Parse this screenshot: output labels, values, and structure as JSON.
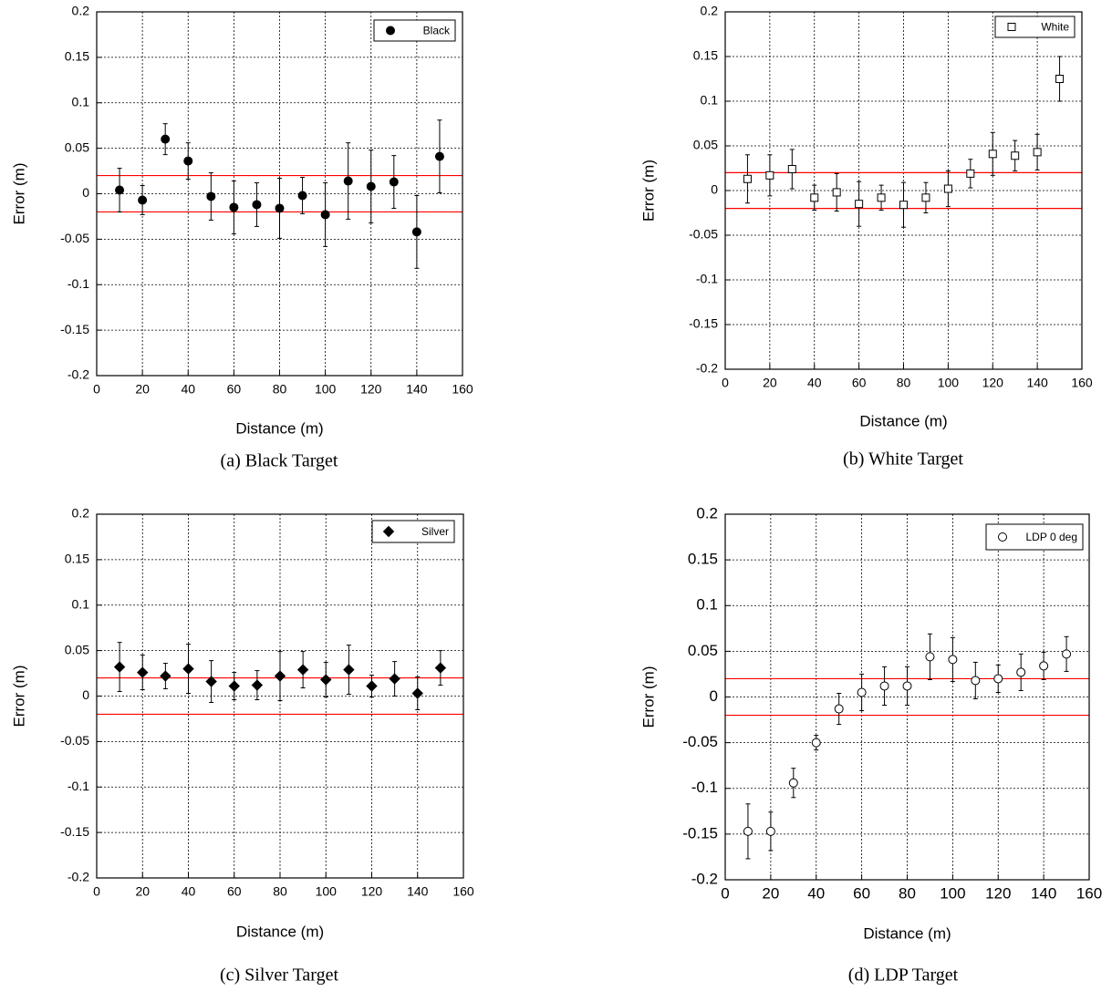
{
  "chart_data": [
    {
      "type": "scatter",
      "caption": "(a) Black Target",
      "xlabel": "Distance (m)",
      "ylabel": "Error (m)",
      "x": [
        10,
        20,
        30,
        40,
        50,
        60,
        70,
        80,
        90,
        100,
        110,
        120,
        130,
        140,
        150
      ],
      "series": [
        {
          "name": "Black",
          "color": "#000000",
          "marker": "circle",
          "filled": true,
          "values": [
            0.004,
            -0.007,
            0.06,
            0.036,
            -0.003,
            -0.015,
            -0.012,
            -0.016,
            -0.002,
            -0.023,
            0.014,
            0.008,
            0.013,
            -0.042,
            0.041
          ],
          "errors": [
            0.024,
            0.016,
            0.017,
            0.02,
            0.026,
            0.029,
            0.024,
            0.033,
            0.02,
            0.035,
            0.042,
            0.04,
            0.029,
            0.04,
            0.04
          ]
        }
      ],
      "xlim": [
        0,
        160
      ],
      "ylim": [
        -0.2,
        0.2
      ],
      "xticks": [
        0,
        20,
        40,
        60,
        80,
        100,
        120,
        140,
        160
      ],
      "yticks": [
        -0.2,
        -0.15,
        -0.1,
        -0.05,
        0,
        0.05,
        0.1,
        0.15,
        0.2
      ],
      "grid": true,
      "legend": "upper right",
      "reference_lines": {
        "color": "#ff0000",
        "values": [
          0.02,
          -0.02
        ]
      }
    },
    {
      "type": "scatter",
      "caption": "(b) White Target",
      "xlabel": "Distance (m)",
      "ylabel": "Error (m)",
      "x": [
        10,
        20,
        30,
        40,
        50,
        60,
        70,
        80,
        90,
        100,
        110,
        120,
        130,
        140,
        150
      ],
      "series": [
        {
          "name": "White",
          "color": "#000000",
          "marker": "square",
          "filled": false,
          "values": [
            0.013,
            0.017,
            0.024,
            -0.008,
            -0.002,
            -0.015,
            -0.008,
            -0.016,
            -0.008,
            0.002,
            0.019,
            0.041,
            0.039,
            0.043,
            0.125
          ],
          "errors": [
            0.027,
            0.023,
            0.022,
            0.014,
            0.021,
            0.025,
            0.014,
            0.025,
            0.017,
            0.02,
            0.016,
            0.024,
            0.017,
            0.02,
            0.025
          ]
        }
      ],
      "xlim": [
        0,
        160
      ],
      "ylim": [
        -0.2,
        0.2
      ],
      "xticks": [
        0,
        20,
        40,
        60,
        80,
        100,
        120,
        140,
        160
      ],
      "yticks": [
        -0.2,
        -0.15,
        -0.1,
        -0.05,
        0,
        0.05,
        0.1,
        0.15,
        0.2
      ],
      "grid": true,
      "legend": "upper right",
      "reference_lines": {
        "color": "#ff0000",
        "values": [
          0.02,
          -0.02
        ]
      }
    },
    {
      "type": "scatter",
      "caption": "(c) Silver Target",
      "xlabel": "Distance (m)",
      "ylabel": "Error (m)",
      "x": [
        10,
        20,
        30,
        40,
        50,
        60,
        70,
        80,
        90,
        100,
        110,
        120,
        130,
        140,
        150
      ],
      "series": [
        {
          "name": "Silver",
          "color": "#000000",
          "marker": "diamond",
          "filled": true,
          "values": [
            0.032,
            0.026,
            0.022,
            0.03,
            0.016,
            0.011,
            0.012,
            0.022,
            0.029,
            0.018,
            0.029,
            0.011,
            0.019,
            0.003,
            0.031
          ],
          "errors": [
            0.027,
            0.019,
            0.014,
            0.027,
            0.023,
            0.015,
            0.016,
            0.027,
            0.02,
            0.019,
            0.027,
            0.012,
            0.019,
            0.018,
            0.019
          ]
        }
      ],
      "xlim": [
        0,
        160
      ],
      "ylim": [
        -0.2,
        0.2
      ],
      "xticks": [
        0,
        20,
        40,
        60,
        80,
        100,
        120,
        140,
        160
      ],
      "yticks": [
        -0.2,
        -0.15,
        -0.1,
        -0.05,
        0,
        0.05,
        0.1,
        0.15,
        0.2
      ],
      "grid": true,
      "legend": "upper right",
      "reference_lines": {
        "color": "#ff0000",
        "values": [
          0.02,
          -0.02
        ]
      }
    },
    {
      "type": "scatter",
      "caption": "(d) LDP Target",
      "xlabel": "Distance (m)",
      "ylabel": "Error (m)",
      "x": [
        10,
        20,
        30,
        40,
        50,
        60,
        70,
        80,
        90,
        100,
        110,
        120,
        130,
        140,
        150
      ],
      "series": [
        {
          "name": "LDP 0 deg",
          "color": "#000000",
          "marker": "circle",
          "filled": false,
          "values": [
            -0.147,
            -0.147,
            -0.094,
            -0.05,
            -0.013,
            0.005,
            0.012,
            0.012,
            0.044,
            0.041,
            0.018,
            0.02,
            0.027,
            0.034,
            0.047
          ],
          "errors": [
            0.03,
            0.021,
            0.016,
            0.008,
            0.017,
            0.02,
            0.021,
            0.021,
            0.025,
            0.024,
            0.02,
            0.015,
            0.02,
            0.015,
            0.019
          ]
        }
      ],
      "xlim": [
        0,
        160
      ],
      "ylim": [
        -0.2,
        0.2
      ],
      "xticks": [
        0,
        20,
        40,
        60,
        80,
        100,
        120,
        140,
        160
      ],
      "yticks": [
        -0.2,
        -0.15,
        -0.1,
        -0.05,
        0,
        0.05,
        0.1,
        0.15,
        0.2
      ],
      "grid": true,
      "legend": "upper right",
      "reference_lines": {
        "color": "#ff0000",
        "values": [
          0.02,
          -0.02
        ]
      }
    }
  ]
}
